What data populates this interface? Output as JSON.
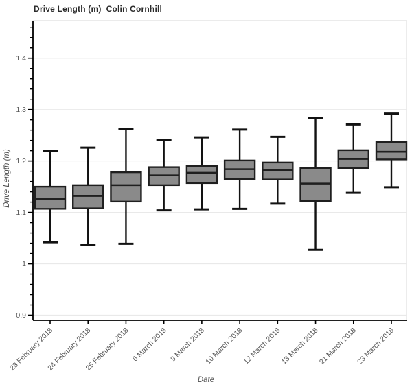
{
  "chart_data": {
    "type": "boxplot",
    "title": "Drive Length (m)  Colin Cornhill",
    "xlabel": "Date",
    "ylabel": "Drive Length (m)",
    "categories": [
      "23 February 2018",
      "24 February 2018",
      "25 February 2018",
      "6 March 2018",
      "9 March 2018",
      "10 March 2018",
      "12 March 2018",
      "13 March 2018",
      "21 March 2018",
      "23 March 2018"
    ],
    "boxes": [
      {
        "label": "23 February 2018",
        "whisker_low": 1.042,
        "q1": 1.107,
        "median": 1.126,
        "q3": 1.15,
        "whisker_high": 1.219
      },
      {
        "label": "24 February 2018",
        "whisker_low": 1.037,
        "q1": 1.108,
        "median": 1.132,
        "q3": 1.153,
        "whisker_high": 1.226
      },
      {
        "label": "25 February 2018",
        "whisker_low": 1.039,
        "q1": 1.121,
        "median": 1.153,
        "q3": 1.178,
        "whisker_high": 1.262
      },
      {
        "label": "6 March 2018",
        "whisker_low": 1.104,
        "q1": 1.153,
        "median": 1.172,
        "q3": 1.188,
        "whisker_high": 1.241
      },
      {
        "label": "9 March 2018",
        "whisker_low": 1.106,
        "q1": 1.157,
        "median": 1.177,
        "q3": 1.19,
        "whisker_high": 1.246
      },
      {
        "label": "10 March 2018",
        "whisker_low": 1.107,
        "q1": 1.165,
        "median": 1.184,
        "q3": 1.201,
        "whisker_high": 1.261
      },
      {
        "label": "12 March 2018",
        "whisker_low": 1.117,
        "q1": 1.164,
        "median": 1.182,
        "q3": 1.197,
        "whisker_high": 1.247
      },
      {
        "label": "13 March 2018",
        "whisker_low": 1.027,
        "q1": 1.122,
        "median": 1.156,
        "q3": 1.186,
        "whisker_high": 1.283
      },
      {
        "label": "21 March 2018",
        "whisker_low": 1.138,
        "q1": 1.186,
        "median": 1.204,
        "q3": 1.221,
        "whisker_high": 1.271
      },
      {
        "label": "23 March 2018",
        "whisker_low": 1.149,
        "q1": 1.203,
        "median": 1.218,
        "q3": 1.237,
        "whisker_high": 1.292
      }
    ],
    "ylim": [
      0.89,
      1.473
    ],
    "yticks": [
      0.9,
      1.0,
      1.1,
      1.2,
      1.3,
      1.4
    ],
    "ytick_labels": [
      "0.9",
      "1",
      "1.1",
      "1.2",
      "1.3",
      "1.4"
    ],
    "y_minor_step": 0.02,
    "x_tick_rotation_deg": 45,
    "grid": {
      "horizontal_major": true
    },
    "legend": "none",
    "colors": {
      "background": "#ffffff",
      "box_fill": "#8a8a8a",
      "box_edge": "#1f1f1f",
      "whisker": "#121212",
      "grid": "#e9e9e9",
      "frame": "#dedede",
      "axis": "#000000",
      "tick_label": "#595959",
      "title": "#2b2b2b",
      "axis_label": "#4f4f4f"
    }
  }
}
